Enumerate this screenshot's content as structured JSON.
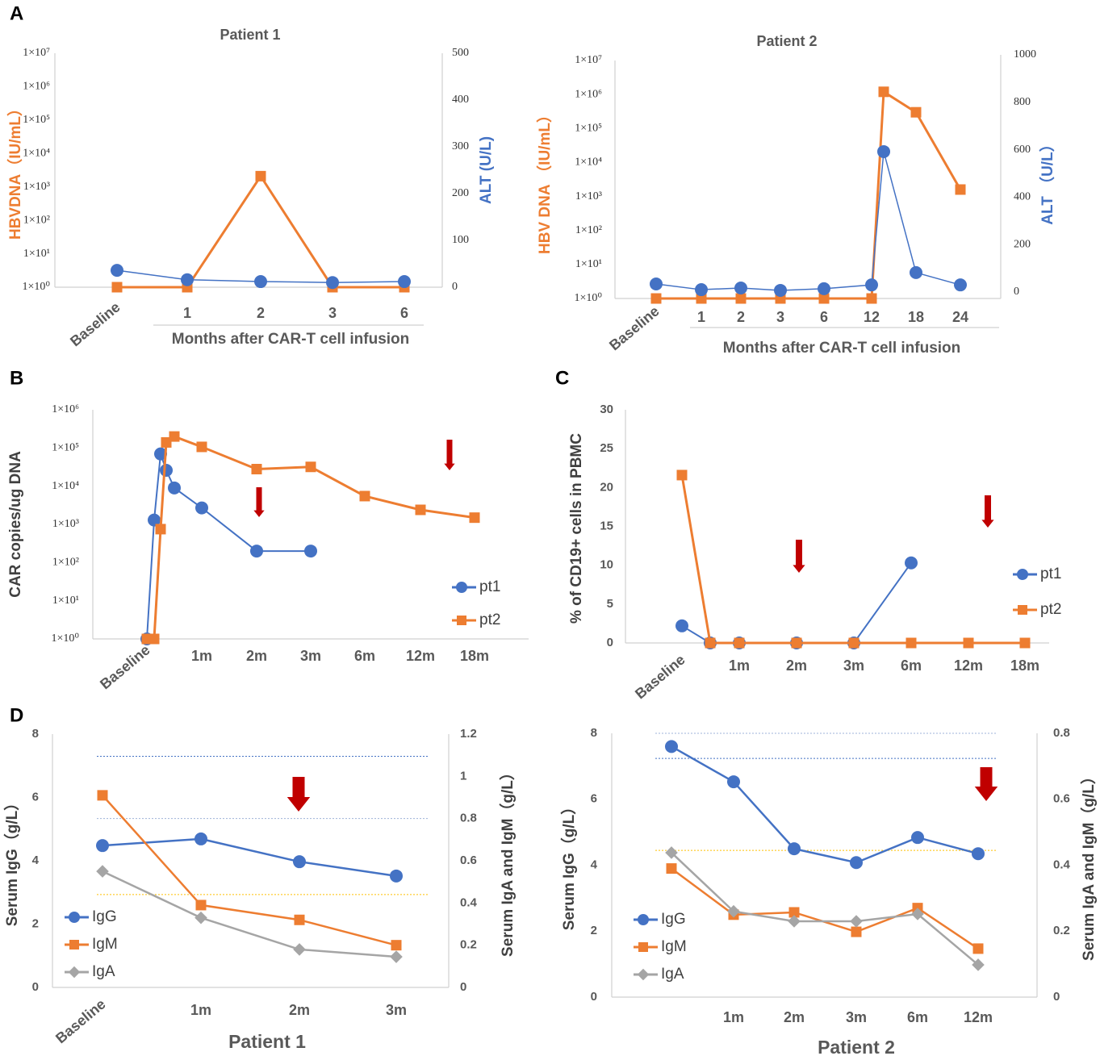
{
  "chart_data": [
    {
      "type": "line",
      "panel": "A",
      "title": "Patient 1",
      "xlabel": "Months after CAR-T cell infusion",
      "ylabel": "HBVDNA（IU/mL）",
      "y2label": "ALT (U/L)",
      "categories": [
        "Baseline",
        "1",
        "2",
        "3",
        "6"
      ],
      "series": [
        {
          "color": "#ed7d31",
          "marker": "square",
          "values": [
            1,
            1,
            2100,
            1,
            1
          ]
        },
        {
          "color": "#4472c4",
          "marker": "circle",
          "axis": "y2",
          "values": [
            36,
            16,
            12,
            10,
            12
          ]
        }
      ],
      "ylog": true,
      "ylim": [
        1,
        10000000
      ],
      "yticks": [
        {
          "value": 1,
          "label": "1×10⁰"
        },
        {
          "value": 10,
          "label": "1×10¹"
        },
        {
          "value": 100,
          "label": "1×10²"
        },
        {
          "value": 1000,
          "label": "1×10³"
        },
        {
          "value": 10000,
          "label": "1×10⁴"
        },
        {
          "value": 100000,
          "label": "1×10⁵"
        },
        {
          "value": 1000000,
          "label": "1×10⁶"
        },
        {
          "value": 10000000,
          "label": "1×10⁷"
        }
      ],
      "y2lim": [
        0,
        500
      ],
      "y2ticks": [
        0,
        100,
        200,
        300,
        400,
        500
      ]
    },
    {
      "type": "line",
      "title": "Patient 2",
      "xlabel": "Months after CAR-T cell infusion",
      "ylabel": "HBV DNA （IU/mL）",
      "y2label": "ALT （U/L）",
      "categories": [
        "Baseline",
        "1",
        "2",
        "3",
        "6",
        "12",
        null,
        "18",
        "24"
      ],
      "series": [
        {
          "color": "#ed7d31",
          "marker": "square",
          "values": [
            1,
            1,
            1,
            1,
            1,
            1,
            1200000,
            300000,
            1600
          ]
        },
        {
          "color": "#4472c4",
          "marker": "circle",
          "axis": "y2",
          "values": [
            34,
            10,
            17,
            7,
            14,
            30,
            592,
            82,
            30
          ]
        }
      ],
      "ylog": true,
      "ylim": [
        1,
        10000000
      ],
      "yticks": [
        {
          "value": 1,
          "label": "1×10⁰"
        },
        {
          "value": 10,
          "label": "1×10¹"
        },
        {
          "value": 100,
          "label": "1×10²"
        },
        {
          "value": 1000,
          "label": "1×10³"
        },
        {
          "value": 10000,
          "label": "1×10⁴"
        },
        {
          "value": 100000,
          "label": "1×10⁵"
        },
        {
          "value": 1000000,
          "label": "1×10⁶"
        },
        {
          "value": 10000000,
          "label": "1×10⁷"
        }
      ],
      "y2lim": [
        0,
        1000
      ],
      "y2ticks": [
        0,
        200,
        400,
        600,
        800,
        1000
      ]
    },
    {
      "type": "line",
      "panel": "B",
      "ylabel": "CAR copies/ug DNA",
      "legend": "right",
      "categories": [
        "Baseline",
        null,
        null,
        null,
        null,
        "1m",
        "2m",
        "3m",
        "6m",
        "12m",
        "18m"
      ],
      "series": [
        {
          "name": "pt1",
          "color": "#4472c4",
          "marker": "circle",
          "values": [
            1,
            1300,
            70000,
            26000,
            9000,
            2700,
            200,
            200,
            null,
            null,
            null
          ]
        },
        {
          "name": "pt2",
          "color": "#ed7d31",
          "marker": "square",
          "values": [
            1,
            1,
            750,
            140000,
            200000,
            107000,
            28000,
            32000,
            5500,
            2400,
            1500
          ]
        }
      ],
      "ylog": true,
      "ylim": [
        1,
        1000000
      ],
      "yticks": [
        {
          "value": 1,
          "label": "1×10⁰"
        },
        {
          "value": 10,
          "label": "1×10¹"
        },
        {
          "value": 100,
          "label": "1×10²"
        },
        {
          "value": 1000,
          "label": "1×10³"
        },
        {
          "value": 10000,
          "label": "1×10⁴"
        },
        {
          "value": 100000,
          "label": "1×10⁵"
        },
        {
          "value": 1000000,
          "label": "1×10⁶"
        }
      ]
    },
    {
      "type": "line",
      "panel": "C",
      "ylabel": "% of CD19+ cells in PBMC",
      "legend": "right",
      "categories": [
        "Baseline",
        null,
        "1m",
        "2m",
        "3m",
        "6m",
        "12m",
        "18m"
      ],
      "series": [
        {
          "name": "pt1",
          "color": "#4472c4",
          "marker": "circle",
          "values": [
            2.2,
            0,
            0,
            0,
            0,
            10.3,
            null,
            null
          ]
        },
        {
          "name": "pt2",
          "color": "#ed7d31",
          "marker": "square",
          "values": [
            21.6,
            0,
            0,
            0,
            0,
            0,
            0,
            0
          ]
        }
      ],
      "ylim": [
        0,
        30
      ],
      "yticks": [
        0,
        5,
        10,
        15,
        20,
        25,
        30
      ]
    },
    {
      "type": "line",
      "panel": "D",
      "xlabel": "Patient 1",
      "ylabel": "Serum IgG（g/L）",
      "y2label": "Serum IgA and IgM（g/L）",
      "legend": "lower left",
      "categories": [
        "Baseline",
        "1m",
        "2m",
        "3m"
      ],
      "series": [
        {
          "name": "IgG",
          "color": "#4472c4",
          "marker": "circle",
          "values": [
            4.48,
            4.69,
            3.97,
            3.52
          ]
        },
        {
          "name": "IgM",
          "color": "#ed7d31",
          "marker": "square",
          "axis": "y2",
          "values": [
            0.91,
            0.39,
            0.32,
            0.2
          ]
        },
        {
          "name": "IgA",
          "color": "#a5a5a5",
          "marker": "diamond",
          "axis": "y2",
          "values": [
            0.55,
            0.33,
            0.18,
            0.145
          ]
        }
      ],
      "ylim": [
        0,
        8
      ],
      "yticks": [
        0,
        2,
        4,
        6,
        8
      ],
      "y2lim": [
        0,
        1.2
      ],
      "y2ticks": [
        0,
        0.2,
        0.4,
        0.6,
        0.8,
        1,
        1.2
      ],
      "reference_lines": [
        {
          "axis": "y",
          "value": 7.3,
          "color": "#4472c4"
        },
        {
          "axis": "y2",
          "value": 0.8,
          "color": "#9fb3d8"
        },
        {
          "axis": "y2",
          "value": 0.44,
          "color": "#ffc000"
        }
      ]
    },
    {
      "type": "line",
      "xlabel": "Patient 2",
      "ylabel": "Serum IgG（g/L）",
      "y2label": "Serum IgA and IgM（g/L）",
      "legend": "lower left",
      "categories": [
        null,
        "1m",
        "2m",
        "3m",
        "6m",
        "12m"
      ],
      "series": [
        {
          "name": "IgG",
          "color": "#4472c4",
          "marker": "circle",
          "values": [
            7.6,
            6.53,
            4.5,
            4.08,
            4.84,
            4.35
          ]
        },
        {
          "name": "IgM",
          "color": "#ed7d31",
          "marker": "square",
          "axis": "y2",
          "values": [
            0.39,
            0.25,
            0.257,
            0.198,
            0.27,
            0.147
          ]
        },
        {
          "name": "IgA",
          "color": "#a5a5a5",
          "marker": "diamond",
          "axis": "y2",
          "values": [
            0.438,
            0.26,
            0.23,
            0.23,
            0.252,
            0.098
          ]
        }
      ],
      "ylim": [
        0,
        8
      ],
      "yticks": [
        0,
        2,
        4,
        6,
        8
      ],
      "y2lim": [
        0,
        0.8
      ],
      "y2ticks": [
        0,
        0.2,
        0.4,
        0.6,
        0.8
      ],
      "reference_lines": [
        {
          "axis": "y2",
          "value": 0.8,
          "color": "#9fb3d8"
        },
        {
          "axis": "y",
          "value": 7.24,
          "color": "#4472c4"
        },
        {
          "axis": "y2",
          "value": 0.445,
          "color": "#ffc000"
        }
      ]
    }
  ]
}
